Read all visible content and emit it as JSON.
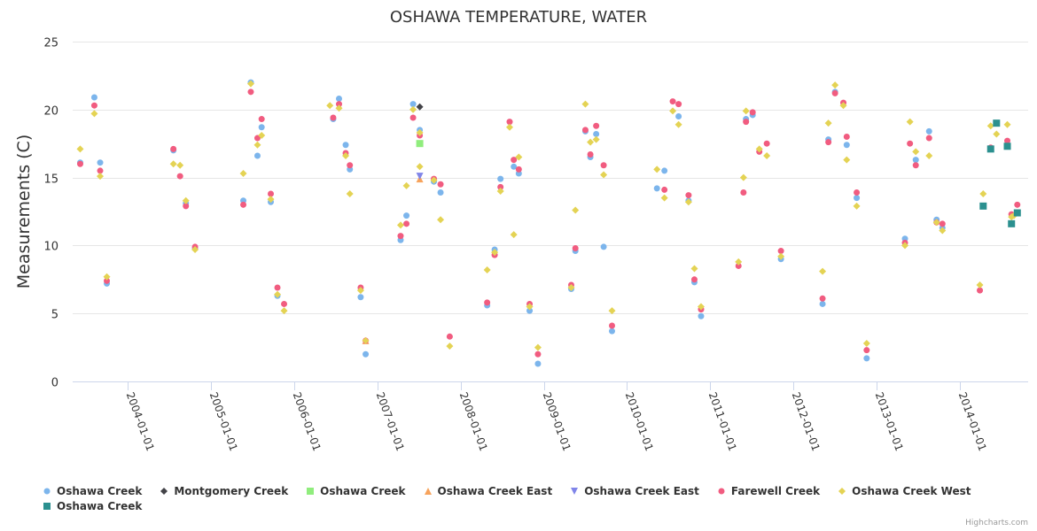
{
  "chart_data": {
    "type": "scatter",
    "title": "OSHAWA TEMPERATURE, WATER",
    "xlabel": "",
    "ylabel": "Measurements (C)",
    "ylim": [
      0,
      25
    ],
    "yticks": [
      "0",
      "5",
      "10",
      "15",
      "20",
      "25"
    ],
    "xlim": [
      2003.3,
      2014.83
    ],
    "xticks": [
      {
        "value": 2004,
        "label": "2004-01-01"
      },
      {
        "value": 2005,
        "label": "2005-01-01"
      },
      {
        "value": 2006,
        "label": "2006-01-01"
      },
      {
        "value": 2007,
        "label": "2007-01-01"
      },
      {
        "value": 2008,
        "label": "2008-01-01"
      },
      {
        "value": 2009,
        "label": "2009-01-01"
      },
      {
        "value": 2010,
        "label": "2010-01-01"
      },
      {
        "value": 2011,
        "label": "2011-01-01"
      },
      {
        "value": 2012,
        "label": "2012-01-01"
      },
      {
        "value": 2013,
        "label": "2013-01-01"
      },
      {
        "value": 2014,
        "label": "2014-01-01"
      }
    ],
    "grid": true,
    "legend_position": "bottom",
    "series": [
      {
        "name": "Oshawa Creek",
        "marker": "circle",
        "color": "#7cb5ec",
        "points": [
          [
            2003.43,
            16.1
          ],
          [
            2003.6,
            20.9
          ],
          [
            2003.67,
            16.1
          ],
          [
            2003.75,
            7.2
          ],
          [
            2004.55,
            17.0
          ],
          [
            2004.7,
            13.1
          ],
          [
            2004.81,
            9.8
          ],
          [
            2005.39,
            13.3
          ],
          [
            2005.48,
            22.0
          ],
          [
            2005.56,
            16.6
          ],
          [
            2005.61,
            18.7
          ],
          [
            2005.72,
            13.2
          ],
          [
            2005.8,
            6.3
          ],
          [
            2006.47,
            19.3
          ],
          [
            2006.54,
            20.8
          ],
          [
            2006.62,
            17.4
          ],
          [
            2006.67,
            15.6
          ],
          [
            2006.8,
            6.2
          ],
          [
            2006.86,
            2.0
          ],
          [
            2007.28,
            10.4
          ],
          [
            2007.35,
            12.2
          ],
          [
            2007.43,
            20.4
          ],
          [
            2007.51,
            18.5
          ],
          [
            2007.68,
            14.7
          ],
          [
            2007.76,
            13.9
          ],
          [
            2008.32,
            5.6
          ],
          [
            2008.41,
            9.7
          ],
          [
            2008.48,
            14.9
          ],
          [
            2008.64,
            15.8
          ],
          [
            2008.7,
            15.3
          ],
          [
            2008.83,
            5.2
          ],
          [
            2008.93,
            1.3
          ],
          [
            2009.33,
            6.8
          ],
          [
            2009.38,
            9.6
          ],
          [
            2009.5,
            18.4
          ],
          [
            2009.56,
            16.5
          ],
          [
            2009.63,
            18.2
          ],
          [
            2009.72,
            9.9
          ],
          [
            2009.82,
            3.7
          ],
          [
            2010.36,
            14.2
          ],
          [
            2010.45,
            15.5
          ],
          [
            2010.62,
            19.5
          ],
          [
            2010.74,
            13.3
          ],
          [
            2010.81,
            7.3
          ],
          [
            2010.89,
            4.8
          ],
          [
            2011.43,
            19.3
          ],
          [
            2011.51,
            19.6
          ],
          [
            2011.85,
            9.0
          ],
          [
            2012.35,
            5.7
          ],
          [
            2012.42,
            17.8
          ],
          [
            2012.5,
            21.3
          ],
          [
            2012.64,
            17.4
          ],
          [
            2012.76,
            13.5
          ],
          [
            2012.88,
            1.7
          ],
          [
            2013.34,
            10.5
          ],
          [
            2013.47,
            16.3
          ],
          [
            2013.63,
            18.4
          ],
          [
            2013.72,
            11.9
          ],
          [
            2013.79,
            11.3
          ]
        ]
      },
      {
        "name": "Montgomery Creek",
        "marker": "diamond",
        "color": "#434348",
        "points": [
          [
            2007.51,
            20.2
          ]
        ]
      },
      {
        "name": "Oshawa Creek",
        "marker": "square",
        "color": "#90ed7d",
        "points": [
          [
            2007.51,
            17.5
          ]
        ]
      },
      {
        "name": "Oshawa Creek East",
        "marker": "triangle",
        "color": "#f7a35c",
        "points": [
          [
            2006.86,
            3.0
          ],
          [
            2007.51,
            14.9
          ]
        ]
      },
      {
        "name": "Oshawa Creek East",
        "marker": "triangle-down",
        "color": "#8085e9",
        "points": [
          [
            2007.51,
            15.1
          ]
        ]
      },
      {
        "name": "Farewell Creek",
        "marker": "circle",
        "color": "#f15c80",
        "points": [
          [
            2003.43,
            16.0
          ],
          [
            2003.6,
            20.3
          ],
          [
            2003.67,
            15.5
          ],
          [
            2003.75,
            7.4
          ],
          [
            2004.55,
            17.1
          ],
          [
            2004.63,
            15.1
          ],
          [
            2004.7,
            12.9
          ],
          [
            2004.81,
            9.9
          ],
          [
            2005.39,
            13.0
          ],
          [
            2005.48,
            21.3
          ],
          [
            2005.56,
            17.9
          ],
          [
            2005.61,
            19.3
          ],
          [
            2005.72,
            13.8
          ],
          [
            2005.8,
            6.9
          ],
          [
            2005.88,
            5.7
          ],
          [
            2006.47,
            19.4
          ],
          [
            2006.54,
            20.4
          ],
          [
            2006.62,
            16.8
          ],
          [
            2006.67,
            15.9
          ],
          [
            2006.8,
            6.9
          ],
          [
            2006.86,
            3.0
          ],
          [
            2007.28,
            10.7
          ],
          [
            2007.35,
            11.6
          ],
          [
            2007.43,
            19.4
          ],
          [
            2007.51,
            18.1
          ],
          [
            2007.68,
            14.9
          ],
          [
            2007.76,
            14.5
          ],
          [
            2007.87,
            3.3
          ],
          [
            2008.32,
            5.8
          ],
          [
            2008.41,
            9.3
          ],
          [
            2008.48,
            14.3
          ],
          [
            2008.59,
            19.1
          ],
          [
            2008.64,
            16.3
          ],
          [
            2008.7,
            15.6
          ],
          [
            2008.83,
            5.7
          ],
          [
            2008.93,
            2.0
          ],
          [
            2009.33,
            7.1
          ],
          [
            2009.38,
            9.8
          ],
          [
            2009.5,
            18.5
          ],
          [
            2009.56,
            16.7
          ],
          [
            2009.63,
            18.8
          ],
          [
            2009.72,
            15.9
          ],
          [
            2009.82,
            4.1
          ],
          [
            2010.45,
            14.1
          ],
          [
            2010.55,
            20.6
          ],
          [
            2010.62,
            20.4
          ],
          [
            2010.74,
            13.7
          ],
          [
            2010.81,
            7.5
          ],
          [
            2010.89,
            5.3
          ],
          [
            2011.34,
            8.5
          ],
          [
            2011.4,
            13.9
          ],
          [
            2011.43,
            19.1
          ],
          [
            2011.51,
            19.8
          ],
          [
            2011.59,
            16.9
          ],
          [
            2011.68,
            17.5
          ],
          [
            2011.85,
            9.6
          ],
          [
            2012.35,
            6.1
          ],
          [
            2012.42,
            17.6
          ],
          [
            2012.5,
            21.2
          ],
          [
            2012.6,
            20.5
          ],
          [
            2012.64,
            18.0
          ],
          [
            2012.76,
            13.9
          ],
          [
            2012.88,
            2.3
          ],
          [
            2013.34,
            10.2
          ],
          [
            2013.4,
            17.5
          ],
          [
            2013.47,
            15.9
          ],
          [
            2013.63,
            17.9
          ],
          [
            2013.72,
            11.7
          ],
          [
            2013.79,
            11.6
          ],
          [
            2014.24,
            6.7
          ],
          [
            2014.37,
            17.2
          ],
          [
            2014.57,
            17.7
          ],
          [
            2014.62,
            12.3
          ],
          [
            2014.69,
            13.0
          ]
        ]
      },
      {
        "name": "Oshawa Creek West",
        "marker": "diamond",
        "color": "#e4d354",
        "points": [
          [
            2003.43,
            17.1
          ],
          [
            2003.6,
            19.7
          ],
          [
            2003.67,
            15.1
          ],
          [
            2003.75,
            7.7
          ],
          [
            2004.55,
            16.0
          ],
          [
            2004.63,
            15.9
          ],
          [
            2004.7,
            13.3
          ],
          [
            2004.81,
            9.7
          ],
          [
            2005.39,
            15.3
          ],
          [
            2005.48,
            21.9
          ],
          [
            2005.56,
            17.4
          ],
          [
            2005.61,
            18.1
          ],
          [
            2005.72,
            13.4
          ],
          [
            2005.8,
            6.4
          ],
          [
            2005.88,
            5.2
          ],
          [
            2006.43,
            20.3
          ],
          [
            2006.54,
            20.1
          ],
          [
            2006.62,
            16.6
          ],
          [
            2006.67,
            13.8
          ],
          [
            2006.8,
            6.7
          ],
          [
            2006.86,
            3.0
          ],
          [
            2007.28,
            11.5
          ],
          [
            2007.35,
            14.4
          ],
          [
            2007.43,
            20.0
          ],
          [
            2007.51,
            18.3
          ],
          [
            2007.51,
            15.8
          ],
          [
            2007.68,
            14.8
          ],
          [
            2007.76,
            11.9
          ],
          [
            2007.87,
            2.6
          ],
          [
            2008.32,
            8.2
          ],
          [
            2008.41,
            9.5
          ],
          [
            2008.48,
            14.0
          ],
          [
            2008.59,
            18.7
          ],
          [
            2008.64,
            10.8
          ],
          [
            2008.7,
            16.5
          ],
          [
            2008.83,
            5.5
          ],
          [
            2008.93,
            2.5
          ],
          [
            2009.33,
            6.9
          ],
          [
            2009.38,
            12.6
          ],
          [
            2009.5,
            20.4
          ],
          [
            2009.56,
            17.6
          ],
          [
            2009.63,
            17.8
          ],
          [
            2009.72,
            15.2
          ],
          [
            2009.82,
            5.2
          ],
          [
            2010.36,
            15.6
          ],
          [
            2010.45,
            13.5
          ],
          [
            2010.55,
            19.9
          ],
          [
            2010.62,
            18.9
          ],
          [
            2010.74,
            13.2
          ],
          [
            2010.81,
            8.3
          ],
          [
            2010.89,
            5.5
          ],
          [
            2011.34,
            8.8
          ],
          [
            2011.4,
            15.0
          ],
          [
            2011.43,
            19.9
          ],
          [
            2011.59,
            17.1
          ],
          [
            2011.68,
            16.6
          ],
          [
            2011.85,
            9.2
          ],
          [
            2012.35,
            8.1
          ],
          [
            2012.42,
            19.0
          ],
          [
            2012.5,
            21.8
          ],
          [
            2012.6,
            20.3
          ],
          [
            2012.64,
            16.3
          ],
          [
            2012.76,
            12.9
          ],
          [
            2012.88,
            2.8
          ],
          [
            2013.34,
            10.0
          ],
          [
            2013.4,
            19.1
          ],
          [
            2013.47,
            16.9
          ],
          [
            2013.63,
            16.6
          ],
          [
            2013.72,
            11.7
          ],
          [
            2013.79,
            11.1
          ],
          [
            2014.24,
            7.1
          ],
          [
            2014.28,
            13.8
          ],
          [
            2014.37,
            18.8
          ],
          [
            2014.44,
            18.2
          ],
          [
            2014.57,
            18.9
          ],
          [
            2014.62,
            12.1
          ],
          [
            2014.65,
            12.2
          ]
        ]
      },
      {
        "name": "Oshawa Creek",
        "marker": "square",
        "color": "#2b908f",
        "points": [
          [
            2014.28,
            12.9
          ],
          [
            2014.37,
            17.1
          ],
          [
            2014.44,
            19.0
          ],
          [
            2014.57,
            17.3
          ],
          [
            2014.62,
            11.6
          ],
          [
            2014.69,
            12.4
          ]
        ]
      }
    ]
  },
  "credits": "Highcharts.com"
}
